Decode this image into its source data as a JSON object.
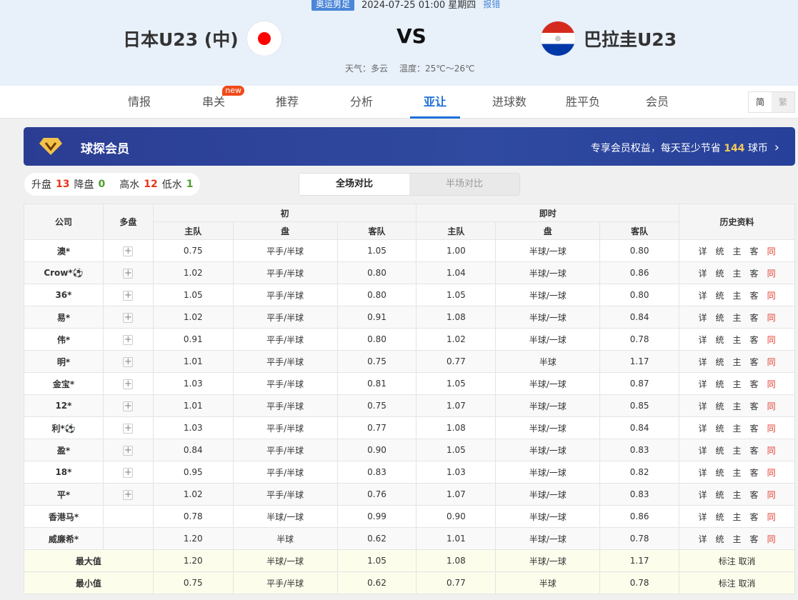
{
  "match": {
    "league": "奥运男足",
    "datetime": "2024-07-25 01:00 星期四",
    "report": "报错",
    "home": "日本U23 (中)",
    "away": "巴拉圭U23",
    "vs": "VS",
    "weather": "天气：多云",
    "temperature": "温度：25℃～26℃"
  },
  "nav": {
    "items": [
      "情报",
      "串关",
      "推荐",
      "分析",
      "亚让",
      "进球数",
      "胜平负",
      "会员"
    ],
    "active": "亚让",
    "new_badge": "new",
    "lang": [
      "简",
      "繁"
    ]
  },
  "vip": {
    "title": "球探会员",
    "text_prefix": "专享会员权益，每天至少节省",
    "coins": "144",
    "text_suffix": "球币",
    "icon": "diamond-icon"
  },
  "stats": {
    "up_label": "升盘",
    "up": "13",
    "down_label": "降盘",
    "down": "0",
    "high_label": "高水",
    "high": "12",
    "low_label": "低水",
    "low": "1"
  },
  "toggle": {
    "full": "全场对比",
    "half": "半场对比"
  },
  "table": {
    "headers": {
      "company": "公司",
      "multi": "多盘",
      "initial": "初",
      "live": "即时",
      "history": "历史资料",
      "home": "主队",
      "line": "盘",
      "away": "客队"
    },
    "history_links": [
      "详",
      "统",
      "主",
      "客",
      "同"
    ],
    "rows": [
      [
        "澳*",
        true,
        "0.75",
        "平手/半球",
        "1.05",
        "1.00",
        "半球/一球",
        "0.80"
      ],
      [
        "Crow*⚽",
        true,
        "1.02",
        "平手/半球",
        "0.80",
        "1.04",
        "半球/一球",
        "0.86"
      ],
      [
        "36*",
        true,
        "1.05",
        "平手/半球",
        "0.80",
        "1.05",
        "半球/一球",
        "0.80"
      ],
      [
        "易*",
        true,
        "1.02",
        "平手/半球",
        "0.91",
        "1.08",
        "半球/一球",
        "0.84"
      ],
      [
        "伟*",
        true,
        "0.91",
        "平手/半球",
        "0.80",
        "1.02",
        "半球/一球",
        "0.78"
      ],
      [
        "明*",
        true,
        "1.01",
        "平手/半球",
        "0.75",
        "0.77",
        "半球",
        "1.17"
      ],
      [
        "金宝*",
        true,
        "1.03",
        "平手/半球",
        "0.81",
        "1.05",
        "半球/一球",
        "0.87"
      ],
      [
        "12*",
        true,
        "1.01",
        "平手/半球",
        "0.75",
        "1.07",
        "半球/一球",
        "0.85"
      ],
      [
        "利*⚽",
        true,
        "1.03",
        "平手/半球",
        "0.77",
        "1.08",
        "半球/一球",
        "0.84"
      ],
      [
        "盈*",
        true,
        "0.84",
        "平手/半球",
        "0.90",
        "1.05",
        "半球/一球",
        "0.83"
      ],
      [
        "18*",
        true,
        "0.95",
        "平手/半球",
        "0.83",
        "1.03",
        "半球/一球",
        "0.82"
      ],
      [
        "平*",
        true,
        "1.02",
        "平手/半球",
        "0.76",
        "1.07",
        "半球/一球",
        "0.83"
      ],
      [
        "香港马*",
        false,
        "0.78",
        "半球/一球",
        "0.99",
        "0.90",
        "半球/一球",
        "0.86"
      ],
      [
        "威廉希*",
        false,
        "1.20",
        "半球",
        "0.62",
        "1.01",
        "半球/一球",
        "0.78"
      ]
    ],
    "summary": [
      {
        "label": "最大值",
        "values": [
          "1.20",
          "半球/一球",
          "1.05",
          "1.08",
          "半球/一球",
          "1.17"
        ],
        "actions": "标注 取消"
      },
      {
        "label": "最小值",
        "values": [
          "0.75",
          "平手/半球",
          "0.62",
          "0.77",
          "半球",
          "0.78"
        ],
        "actions": "标注 取消"
      }
    ]
  }
}
